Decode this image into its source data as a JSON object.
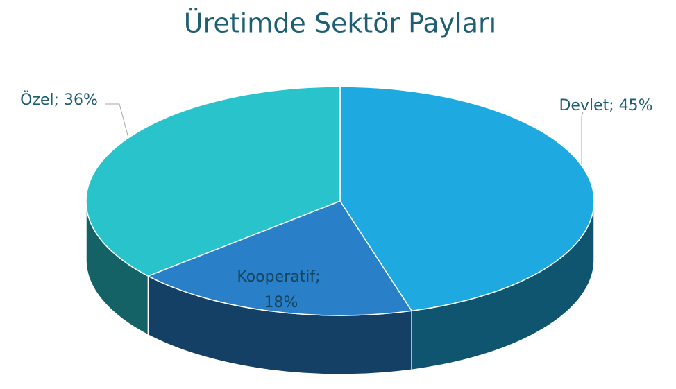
{
  "chart_data": {
    "type": "pie",
    "title": "Üretimde Sektör Payları",
    "categories": [
      "Devlet",
      "Kooperatif",
      "Özel"
    ],
    "values": [
      45,
      18,
      36
    ],
    "value_labels": [
      "Devlet; 45%",
      "Kooperatif; 18%",
      "Özel; 36%"
    ],
    "colors": [
      "#1eaae0",
      "#2a7fc9",
      "#29c3cb"
    ]
  }
}
